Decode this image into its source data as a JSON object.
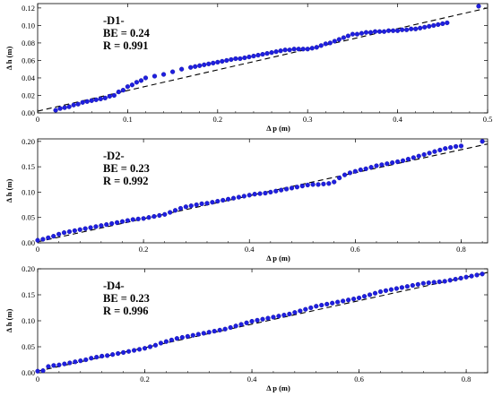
{
  "chart_data": [
    {
      "type": "scatter",
      "id": "D1",
      "xlabel": "Δ p (m)",
      "ylabel": "Δ h (m)",
      "xlim": [
        0,
        0.5
      ],
      "ylim": [
        0,
        0.125
      ],
      "xticks": [
        0,
        0.1,
        0.2,
        0.3,
        0.4,
        0.5
      ],
      "xtick_labels": [
        "0",
        "0.1",
        "0.2",
        "0.3",
        "0.4",
        "0.5"
      ],
      "yticks": [
        0,
        0.02,
        0.04,
        0.06,
        0.08,
        0.1,
        0.12
      ],
      "ytick_labels": [
        "0.00",
        "0.02",
        "0.04",
        "0.06",
        "0.08",
        "0.10",
        "0.12"
      ],
      "annotation": [
        "-D1-",
        "BE = 0.24",
        "R = 0.991"
      ],
      "fit_line": {
        "x": [
          0,
          0.5
        ],
        "y": [
          0.002,
          0.12
        ]
      },
      "series": [
        {
          "x": [
            0.02,
            0.025,
            0.03,
            0.035,
            0.04,
            0.045,
            0.05,
            0.055,
            0.06,
            0.065,
            0.07,
            0.075,
            0.08,
            0.085,
            0.09,
            0.095,
            0.1,
            0.105,
            0.11,
            0.115,
            0.12,
            0.13,
            0.14,
            0.15,
            0.16,
            0.17,
            0.175,
            0.18,
            0.185,
            0.19,
            0.195,
            0.2,
            0.205,
            0.21,
            0.215,
            0.22,
            0.225,
            0.23,
            0.235,
            0.24,
            0.245,
            0.25,
            0.255,
            0.26,
            0.265,
            0.27,
            0.275,
            0.28,
            0.285,
            0.29,
            0.295,
            0.3,
            0.305,
            0.31,
            0.315,
            0.32,
            0.325,
            0.33,
            0.335,
            0.34,
            0.345,
            0.35,
            0.355,
            0.36,
            0.365,
            0.37,
            0.375,
            0.38,
            0.385,
            0.39,
            0.395,
            0.4,
            0.405,
            0.41,
            0.415,
            0.42,
            0.425,
            0.43,
            0.435,
            0.44,
            0.445,
            0.45,
            0.455,
            0.49
          ],
          "y": [
            0.003,
            0.005,
            0.006,
            0.007,
            0.009,
            0.01,
            0.012,
            0.013,
            0.014,
            0.015,
            0.016,
            0.017,
            0.019,
            0.02,
            0.024,
            0.026,
            0.03,
            0.032,
            0.035,
            0.037,
            0.04,
            0.042,
            0.044,
            0.047,
            0.05,
            0.052,
            0.053,
            0.054,
            0.055,
            0.056,
            0.057,
            0.058,
            0.059,
            0.06,
            0.061,
            0.062,
            0.062,
            0.063,
            0.064,
            0.065,
            0.066,
            0.067,
            0.068,
            0.069,
            0.07,
            0.071,
            0.072,
            0.072,
            0.073,
            0.073,
            0.073,
            0.073,
            0.074,
            0.075,
            0.077,
            0.079,
            0.08,
            0.082,
            0.084,
            0.086,
            0.088,
            0.09,
            0.09,
            0.091,
            0.092,
            0.092,
            0.093,
            0.093,
            0.093,
            0.094,
            0.094,
            0.094,
            0.095,
            0.095,
            0.096,
            0.096,
            0.097,
            0.098,
            0.099,
            0.1,
            0.101,
            0.102,
            0.103,
            0.122
          ]
        }
      ]
    },
    {
      "type": "scatter",
      "id": "D2",
      "xlabel": "Δ p (m)",
      "ylabel": "Δ h (m)",
      "xlim": [
        0,
        0.85
      ],
      "ylim": [
        0,
        0.205
      ],
      "xticks": [
        0,
        0.2,
        0.4,
        0.6,
        0.8
      ],
      "xtick_labels": [
        "0",
        "0.2",
        "0.4",
        "0.6",
        "0.8"
      ],
      "yticks": [
        0,
        0.05,
        0.1,
        0.15,
        0.2
      ],
      "ytick_labels": [
        "0.00",
        "0.05",
        "0.10",
        "0.15",
        "0.20"
      ],
      "annotation": [
        "-D2-",
        "BE = 0.23",
        "R = 0.992"
      ],
      "fit_line": {
        "x": [
          0,
          0.85
        ],
        "y": [
          0.002,
          0.195
        ]
      },
      "series": [
        {
          "x": [
            0.0,
            0.01,
            0.02,
            0.03,
            0.04,
            0.05,
            0.06,
            0.07,
            0.08,
            0.09,
            0.1,
            0.11,
            0.12,
            0.13,
            0.14,
            0.15,
            0.16,
            0.17,
            0.18,
            0.19,
            0.2,
            0.21,
            0.22,
            0.23,
            0.24,
            0.25,
            0.26,
            0.27,
            0.28,
            0.29,
            0.3,
            0.31,
            0.32,
            0.33,
            0.34,
            0.35,
            0.36,
            0.37,
            0.38,
            0.39,
            0.4,
            0.41,
            0.42,
            0.43,
            0.44,
            0.45,
            0.46,
            0.47,
            0.48,
            0.49,
            0.5,
            0.51,
            0.52,
            0.53,
            0.54,
            0.55,
            0.56,
            0.57,
            0.58,
            0.59,
            0.6,
            0.61,
            0.62,
            0.63,
            0.64,
            0.65,
            0.66,
            0.67,
            0.68,
            0.69,
            0.7,
            0.71,
            0.72,
            0.73,
            0.74,
            0.75,
            0.76,
            0.77,
            0.78,
            0.79,
            0.8,
            0.84
          ],
          "y": [
            0.005,
            0.007,
            0.01,
            0.013,
            0.017,
            0.02,
            0.022,
            0.024,
            0.026,
            0.028,
            0.03,
            0.032,
            0.034,
            0.036,
            0.038,
            0.04,
            0.042,
            0.044,
            0.046,
            0.047,
            0.048,
            0.05,
            0.052,
            0.054,
            0.056,
            0.06,
            0.064,
            0.068,
            0.071,
            0.073,
            0.075,
            0.077,
            0.078,
            0.08,
            0.082,
            0.084,
            0.086,
            0.088,
            0.09,
            0.092,
            0.094,
            0.096,
            0.097,
            0.098,
            0.1,
            0.102,
            0.104,
            0.106,
            0.108,
            0.11,
            0.112,
            0.114,
            0.115,
            0.115,
            0.116,
            0.117,
            0.12,
            0.128,
            0.134,
            0.138,
            0.141,
            0.144,
            0.146,
            0.149,
            0.152,
            0.154,
            0.156,
            0.158,
            0.16,
            0.162,
            0.165,
            0.168,
            0.171,
            0.174,
            0.177,
            0.18,
            0.183,
            0.186,
            0.188,
            0.19,
            0.191,
            0.2
          ]
        }
      ]
    },
    {
      "type": "scatter",
      "id": "D4",
      "xlabel": "Δ p (m)",
      "ylabel": "Δ h (m)",
      "xlim": [
        0,
        0.84
      ],
      "ylim": [
        0,
        0.2
      ],
      "xticks": [
        0,
        0.2,
        0.4,
        0.6,
        0.8
      ],
      "xtick_labels": [
        "0",
        "0.2",
        "0.4",
        "0.6",
        "0.8"
      ],
      "yticks": [
        0,
        0.05,
        0.1,
        0.15,
        0.2
      ],
      "ytick_labels": [
        "0.00",
        "0.05",
        "0.10",
        "0.15",
        "0.20"
      ],
      "annotation": [
        "-D4-",
        "BE = 0.23",
        "R = 0.996"
      ],
      "fit_line": {
        "x": [
          0,
          0.84
        ],
        "y": [
          0.003,
          0.193
        ]
      },
      "series": [
        {
          "x": [
            0.0,
            0.01,
            0.02,
            0.03,
            0.04,
            0.05,
            0.06,
            0.07,
            0.08,
            0.09,
            0.1,
            0.11,
            0.12,
            0.13,
            0.14,
            0.15,
            0.16,
            0.17,
            0.18,
            0.19,
            0.2,
            0.21,
            0.22,
            0.23,
            0.24,
            0.25,
            0.26,
            0.27,
            0.28,
            0.29,
            0.3,
            0.31,
            0.32,
            0.33,
            0.34,
            0.35,
            0.36,
            0.37,
            0.38,
            0.39,
            0.4,
            0.41,
            0.42,
            0.43,
            0.44,
            0.45,
            0.46,
            0.47,
            0.48,
            0.49,
            0.5,
            0.51,
            0.52,
            0.53,
            0.54,
            0.55,
            0.56,
            0.57,
            0.58,
            0.59,
            0.6,
            0.61,
            0.62,
            0.63,
            0.64,
            0.65,
            0.66,
            0.67,
            0.68,
            0.69,
            0.7,
            0.71,
            0.72,
            0.73,
            0.74,
            0.75,
            0.76,
            0.77,
            0.78,
            0.79,
            0.8,
            0.81,
            0.82,
            0.83
          ],
          "y": [
            0.003,
            0.004,
            0.012,
            0.014,
            0.015,
            0.017,
            0.019,
            0.021,
            0.023,
            0.025,
            0.028,
            0.03,
            0.032,
            0.033,
            0.035,
            0.037,
            0.039,
            0.041,
            0.043,
            0.045,
            0.047,
            0.05,
            0.053,
            0.057,
            0.06,
            0.063,
            0.066,
            0.068,
            0.07,
            0.072,
            0.074,
            0.076,
            0.078,
            0.08,
            0.082,
            0.084,
            0.087,
            0.09,
            0.093,
            0.096,
            0.099,
            0.101,
            0.103,
            0.105,
            0.107,
            0.109,
            0.111,
            0.113,
            0.116,
            0.119,
            0.122,
            0.125,
            0.128,
            0.13,
            0.132,
            0.134,
            0.136,
            0.138,
            0.14,
            0.142,
            0.144,
            0.147,
            0.15,
            0.153,
            0.156,
            0.158,
            0.16,
            0.162,
            0.164,
            0.166,
            0.168,
            0.17,
            0.172,
            0.173,
            0.174,
            0.175,
            0.176,
            0.178,
            0.18,
            0.182,
            0.184,
            0.186,
            0.188,
            0.19
          ]
        }
      ]
    }
  ],
  "colors": {
    "points": "#1f1fe0",
    "point_stroke": "#0a0a9a",
    "fit_line": "#000000",
    "frame": "#000000"
  }
}
